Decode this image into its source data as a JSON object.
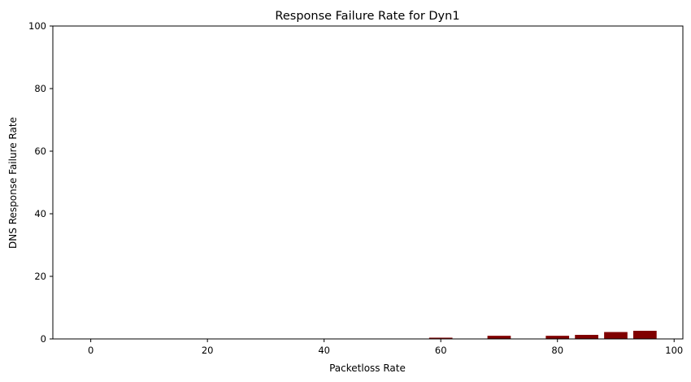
{
  "chart_data": {
    "type": "bar",
    "title": "Response Failure Rate for Dyn1",
    "xlabel": "Packetloss Rate",
    "ylabel": "DNS Response Failure Rate",
    "xlim": [
      -6.5,
      101.5
    ],
    "ylim": [
      0,
      100
    ],
    "xticks": [
      0,
      20,
      40,
      60,
      80,
      100
    ],
    "yticks": [
      0,
      20,
      40,
      60,
      80,
      100
    ],
    "x_tick_labels": [
      "0",
      "20",
      "40",
      "60",
      "80",
      "100"
    ],
    "y_tick_labels": [
      "0",
      "20",
      "40",
      "60",
      "80",
      "100"
    ],
    "bar_width": 4,
    "bar_color": "#800000",
    "grid": false,
    "legend": "none",
    "x": [
      0,
      5,
      10,
      15,
      20,
      25,
      30,
      35,
      40,
      45,
      50,
      55,
      60,
      65,
      70,
      75,
      80,
      85,
      90,
      95
    ],
    "values": [
      0,
      0,
      0,
      0,
      0,
      0,
      0,
      0,
      0,
      0,
      0,
      0,
      0.4,
      0,
      1.0,
      0,
      1.0,
      1.3,
      2.2,
      2.6
    ]
  }
}
